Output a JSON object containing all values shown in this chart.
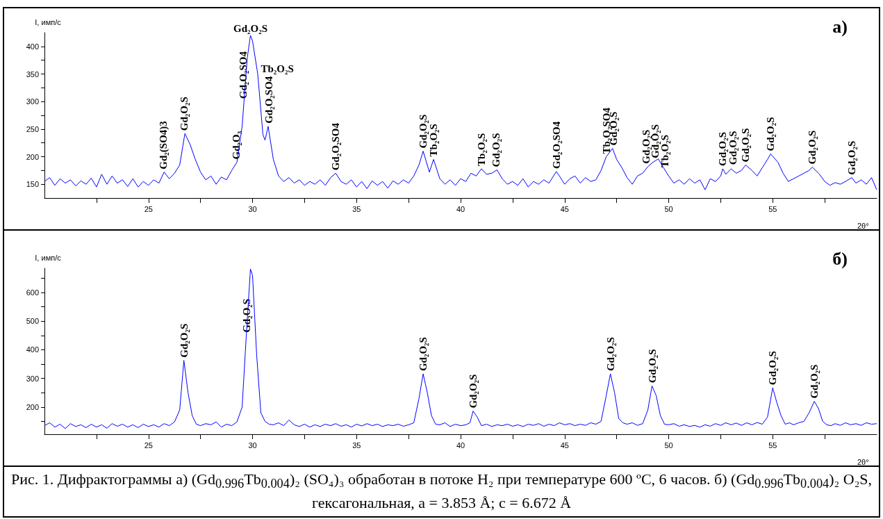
{
  "chart_data": [
    {
      "type": "line",
      "title": "a)",
      "xlabel": "2θ°",
      "ylabel": "I, имп/с",
      "marker": "none",
      "xlim": [
        20,
        60
      ],
      "ylim": [
        125,
        425
      ],
      "xticks": [
        {
          "value": 22.5,
          "label": null
        },
        25,
        {
          "value": 27.5,
          "label": null
        },
        30,
        {
          "value": 32.5,
          "label": null
        },
        35,
        {
          "value": 37.5,
          "label": null
        },
        40,
        {
          "value": 42.5,
          "label": null
        },
        45,
        {
          "value": 47.5,
          "label": null
        },
        50,
        {
          "value": 52.5,
          "label": null
        },
        55,
        {
          "value": 57.5,
          "label": null
        }
      ],
      "yticks": [
        150,
        {
          "value": 175,
          "label": null
        },
        200,
        {
          "value": 225,
          "label": null
        },
        250,
        {
          "value": 275,
          "label": null
        },
        300,
        {
          "value": 325,
          "label": null
        },
        350,
        {
          "value": 375,
          "label": null
        },
        400
      ],
      "series": [
        {
          "color": "#0000ff",
          "x": [
            20.0,
            20.25,
            20.5,
            20.75,
            21.0,
            21.25,
            21.5,
            21.75,
            22.0,
            22.25,
            22.5,
            22.75,
            23.0,
            23.25,
            23.5,
            23.75,
            24.0,
            24.25,
            24.5,
            24.75,
            25.0,
            25.25,
            25.5,
            25.75,
            26.0,
            26.25,
            26.5,
            26.75,
            27.0,
            27.25,
            27.5,
            27.75,
            28.0,
            28.25,
            28.5,
            28.75,
            29.0,
            29.25,
            29.5,
            29.75,
            29.9,
            30.0,
            30.25,
            30.5,
            30.6,
            30.75,
            31.0,
            31.25,
            31.5,
            31.75,
            32.0,
            32.25,
            32.5,
            32.75,
            33.0,
            33.25,
            33.5,
            33.75,
            34.0,
            34.25,
            34.5,
            34.75,
            35.0,
            35.25,
            35.5,
            35.75,
            36.0,
            36.25,
            36.5,
            36.75,
            37.0,
            37.25,
            37.5,
            37.75,
            38.0,
            38.2,
            38.5,
            38.7,
            39.0,
            39.25,
            39.5,
            39.75,
            40.0,
            40.25,
            40.5,
            40.75,
            41.0,
            41.25,
            41.5,
            41.75,
            42.0,
            42.25,
            42.5,
            42.75,
            43.0,
            43.25,
            43.5,
            43.75,
            44.0,
            44.25,
            44.6,
            44.75,
            45.0,
            45.25,
            45.5,
            45.75,
            46.0,
            46.25,
            46.5,
            46.75,
            47.0,
            47.3,
            47.5,
            47.75,
            48.0,
            48.25,
            48.5,
            48.75,
            49.0,
            49.25,
            49.5,
            49.75,
            50.0,
            50.25,
            50.5,
            50.75,
            51.0,
            51.25,
            51.5,
            51.75,
            52.0,
            52.25,
            52.5,
            52.6,
            52.75,
            53.0,
            53.25,
            53.5,
            53.7,
            54.0,
            54.25,
            54.5,
            54.75,
            54.9,
            55.25,
            55.5,
            55.75,
            56.0,
            56.25,
            56.5,
            56.75,
            56.9,
            57.25,
            57.5,
            57.75,
            58.0,
            58.25,
            58.5,
            58.8,
            59.0,
            59.25,
            59.5,
            59.75,
            60.0
          ],
          "values": [
            155,
            162,
            148,
            160,
            152,
            158,
            147,
            156,
            150,
            161,
            145,
            168,
            150,
            165,
            152,
            158,
            146,
            160,
            145,
            155,
            148,
            158,
            152,
            172,
            160,
            170,
            185,
            242,
            222,
            195,
            172,
            158,
            165,
            150,
            163,
            158,
            175,
            190,
            255,
            380,
            420,
            410,
            350,
            240,
            230,
            255,
            195,
            165,
            155,
            162,
            152,
            158,
            148,
            155,
            150,
            158,
            148,
            162,
            170,
            155,
            150,
            158,
            145,
            155,
            142,
            156,
            148,
            155,
            143,
            156,
            150,
            158,
            152,
            165,
            185,
            210,
            172,
            195,
            160,
            150,
            158,
            148,
            160,
            155,
            170,
            165,
            178,
            168,
            170,
            176,
            160,
            150,
            155,
            148,
            160,
            145,
            155,
            150,
            158,
            152,
            173,
            165,
            150,
            160,
            165,
            152,
            162,
            155,
            158,
            175,
            200,
            215,
            195,
            180,
            162,
            150,
            165,
            170,
            182,
            190,
            196,
            180,
            165,
            152,
            158,
            150,
            160,
            152,
            158,
            140,
            160,
            155,
            165,
            178,
            168,
            178,
            170,
            175,
            185,
            175,
            165,
            180,
            195,
            205,
            190,
            170,
            155,
            160,
            165,
            170,
            175,
            181,
            168,
            155,
            148,
            153,
            150,
            155,
            162,
            152,
            158,
            150,
            162,
            140
          ]
        }
      ],
      "annotations": [
        {
          "text": "Gd₂(SO4)3",
          "x": 25.7,
          "y": 172
        },
        {
          "text": "Gd₂O₂S",
          "x": 26.7,
          "y": 242
        },
        {
          "text": "Gd₂O₃",
          "x": 29.2,
          "y": 190
        },
        {
          "text": "Gd₂O₂SO4",
          "x": 29.55,
          "y": 300
        },
        {
          "text": "Gd₂O₂S",
          "x": 29.9,
          "y": 420
        },
        {
          "text": "Tb₂O₂S",
          "x": 30.2,
          "y": 360
        },
        {
          "text": "Gd₂O₂SO4",
          "x": 30.8,
          "y": 255
        },
        {
          "text": "Gd₂O₂SO4",
          "x": 34.0,
          "y": 170
        },
        {
          "text": "Gd₂O₂S",
          "x": 38.2,
          "y": 210
        },
        {
          "text": "Tb₂O₂S",
          "x": 38.7,
          "y": 195
        },
        {
          "text": "Tb₂O₂S",
          "x": 41.0,
          "y": 178
        },
        {
          "text": "Gd₂O₂S",
          "x": 41.7,
          "y": 176
        },
        {
          "text": "Gd₂O₂SO4",
          "x": 44.6,
          "y": 173
        },
        {
          "text": "Tb₂O₂SO4",
          "x": 47.0,
          "y": 200
        },
        {
          "text": "Gd₂O₂S",
          "x": 47.35,
          "y": 215
        },
        {
          "text": "Gd₂O₂S",
          "x": 48.9,
          "y": 182
        },
        {
          "text": "Gd₂O₂S",
          "x": 49.35,
          "y": 192
        },
        {
          "text": "Tb₂O₂S",
          "x": 49.8,
          "y": 175
        },
        {
          "text": "Gd₂O₂S",
          "x": 52.6,
          "y": 178
        },
        {
          "text": "Gd₂O₂S",
          "x": 53.1,
          "y": 180
        },
        {
          "text": "Gd₂O₂S",
          "x": 53.7,
          "y": 185
        },
        {
          "text": "Gd₂O₂S",
          "x": 54.9,
          "y": 205
        },
        {
          "text": "Gd₂O₂S",
          "x": 56.9,
          "y": 181
        },
        {
          "text": "Gd₂O₂S",
          "x": 58.8,
          "y": 162
        }
      ]
    },
    {
      "type": "line",
      "title": "б)",
      "xlabel": "2θ°",
      "ylabel": "I, имп/с",
      "marker": "none",
      "xlim": [
        20,
        60
      ],
      "ylim": [
        105,
        685
      ],
      "xticks": [
        {
          "value": 22.5,
          "label": null
        },
        25,
        {
          "value": 27.5,
          "label": null
        },
        30,
        {
          "value": 32.5,
          "label": null
        },
        35,
        {
          "value": 37.5,
          "label": null
        },
        40,
        {
          "value": 42.5,
          "label": null
        },
        45,
        {
          "value": 47.5,
          "label": null
        },
        50,
        {
          "value": 52.5,
          "label": null
        },
        55,
        {
          "value": 57.5,
          "label": null
        }
      ],
      "yticks": [
        {
          "value": 150,
          "label": null
        },
        200,
        {
          "value": 250,
          "label": null
        },
        300,
        {
          "value": 350,
          "label": null
        },
        400,
        {
          "value": 450,
          "label": null
        },
        500,
        {
          "value": 550,
          "label": null
        },
        600,
        {
          "value": 650,
          "label": null
        }
      ],
      "series": [
        {
          "color": "#0000ff",
          "x": [
            20.0,
            20.25,
            20.5,
            20.75,
            21.0,
            21.25,
            21.5,
            21.75,
            22.0,
            22.25,
            22.5,
            22.75,
            23.0,
            23.25,
            23.5,
            23.75,
            24.0,
            24.25,
            24.5,
            24.75,
            25.0,
            25.25,
            25.5,
            25.75,
            26.0,
            26.25,
            26.5,
            26.7,
            26.9,
            27.1,
            27.3,
            27.5,
            27.75,
            28.0,
            28.25,
            28.5,
            28.75,
            29.0,
            29.25,
            29.5,
            29.7,
            29.9,
            30.0,
            30.2,
            30.4,
            30.6,
            30.8,
            31.0,
            31.25,
            31.5,
            31.75,
            32.0,
            32.25,
            32.5,
            32.75,
            33.0,
            33.25,
            33.5,
            33.75,
            34.0,
            34.25,
            34.5,
            34.75,
            35.0,
            35.25,
            35.5,
            35.75,
            36.0,
            36.25,
            36.5,
            36.75,
            37.0,
            37.25,
            37.5,
            37.75,
            38.0,
            38.2,
            38.4,
            38.6,
            38.8,
            39.0,
            39.25,
            39.5,
            39.75,
            40.0,
            40.25,
            40.45,
            40.6,
            40.8,
            41.0,
            41.25,
            41.5,
            41.75,
            42.0,
            42.25,
            42.5,
            42.75,
            43.0,
            43.25,
            43.5,
            43.75,
            44.0,
            44.25,
            44.5,
            44.75,
            45.0,
            45.25,
            45.5,
            45.75,
            46.0,
            46.25,
            46.5,
            46.75,
            47.0,
            47.2,
            47.4,
            47.6,
            47.8,
            48.0,
            48.25,
            48.5,
            48.75,
            49.0,
            49.2,
            49.4,
            49.6,
            49.8,
            50.0,
            50.25,
            50.5,
            50.75,
            51.0,
            51.25,
            51.5,
            51.75,
            52.0,
            52.25,
            52.5,
            52.75,
            53.0,
            53.25,
            53.5,
            53.75,
            54.0,
            54.25,
            54.5,
            54.75,
            55.0,
            55.2,
            55.4,
            55.6,
            55.8,
            56.0,
            56.25,
            56.5,
            56.75,
            57.0,
            57.2,
            57.4,
            57.6,
            57.8,
            58.0,
            58.25,
            58.5,
            58.75,
            59.0,
            59.25,
            59.5,
            59.75,
            60.0
          ],
          "values": [
            135,
            145,
            130,
            140,
            125,
            142,
            132,
            138,
            128,
            140,
            130,
            138,
            126,
            142,
            133,
            140,
            130,
            138,
            128,
            140,
            132,
            138,
            130,
            142,
            135,
            148,
            190,
            363,
            250,
            170,
            140,
            135,
            142,
            138,
            148,
            130,
            140,
            135,
            148,
            200,
            450,
            682,
            660,
            380,
            180,
            150,
            140,
            138,
            145,
            135,
            155,
            138,
            132,
            140,
            130,
            138,
            132,
            140,
            135,
            142,
            133,
            138,
            130,
            140,
            134,
            142,
            135,
            140,
            132,
            138,
            135,
            140,
            133,
            138,
            145,
            230,
            316,
            250,
            170,
            140,
            138,
            145,
            132,
            140,
            135,
            138,
            145,
            186,
            165,
            135,
            140,
            132,
            138,
            135,
            140,
            133,
            138,
            132,
            140,
            136,
            142,
            133,
            140,
            135,
            145,
            138,
            142,
            135,
            140,
            136,
            145,
            140,
            150,
            240,
            316,
            250,
            160,
            145,
            140,
            145,
            136,
            142,
            190,
            274,
            240,
            170,
            140,
            138,
            142,
            133,
            138,
            132,
            136,
            130,
            138,
            133,
            142,
            136,
            145,
            138,
            144,
            136,
            145,
            138,
            146,
            140,
            165,
            267,
            215,
            170,
            140,
            145,
            138,
            145,
            150,
            180,
            220,
            195,
            150,
            138,
            135,
            142,
            136,
            145,
            138,
            142,
            136,
            145,
            140,
            142
          ]
        }
      ],
      "annotations": [
        {
          "text": "Gd₂O₂S",
          "x": 26.7,
          "y": 363
        },
        {
          "text": "Gd₂O₂S",
          "x": 29.7,
          "y": 450
        },
        {
          "text": "Gd₂O₂S",
          "x": 38.2,
          "y": 316
        },
        {
          "text": "Gd₂O₂S",
          "x": 40.6,
          "y": 186
        },
        {
          "text": "Gd₂O₂S",
          "x": 47.2,
          "y": 316
        },
        {
          "text": "Gd₂O₂S",
          "x": 49.2,
          "y": 274
        },
        {
          "text": "Gd₂O₂S",
          "x": 55.0,
          "y": 267
        },
        {
          "text": "Gd₂O₂S",
          "x": 57.0,
          "y": 220
        },
        "Рис. 1. Дифрактограммы  а) (Gd$_{0.996}$Tb$_{0.004}$)₂ (SO₄)₃ обработан в потоке H₂ при температуре 600 ºC, 6 часов. б) (Gd$_{0.996}$Tb$_{0.004}$)₂ O₂S, гексагональная, a = 3.853 Å; c = 6.672 Å"
      ]
    }
  ]
}
